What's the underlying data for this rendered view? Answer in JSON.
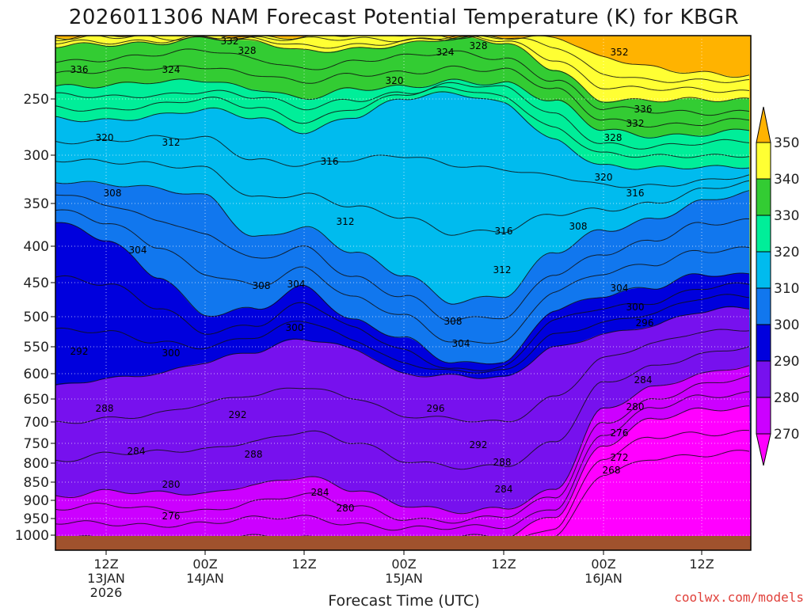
{
  "chart_data": {
    "type": "heatmap",
    "title": "2026011306 NAM Forecast Potential Temperature (K) for KBGR",
    "xlabel": "Forecast Time (UTC)",
    "ylabel": "",
    "y_scale": "pressure (inverted, hPa)",
    "ylim": [
      1000,
      200
    ],
    "y_ticks": [
      "250",
      "300",
      "350",
      "400",
      "450",
      "500",
      "550",
      "600",
      "650",
      "700",
      "750",
      "800",
      "850",
      "900",
      "950",
      "1000"
    ],
    "x_ticks": [
      {
        "lines": [
          "12Z",
          "13JAN",
          "2026"
        ]
      },
      {
        "lines": [
          "00Z",
          "14JAN"
        ]
      },
      {
        "lines": [
          "12Z"
        ]
      },
      {
        "lines": [
          "00Z",
          "15JAN"
        ]
      },
      {
        "lines": [
          "12Z"
        ]
      },
      {
        "lines": [
          "00Z",
          "16JAN"
        ]
      },
      {
        "lines": [
          "12Z"
        ]
      }
    ],
    "grid": true,
    "colorbar": {
      "labels": [
        "350",
        "340",
        "330",
        "320",
        "310",
        "300",
        "290",
        "280",
        "270"
      ],
      "colors": [
        "#ffb300",
        "#ffff33",
        "#33cc33",
        "#00ee99",
        "#00bbee",
        "#1177ee",
        "#0000dd",
        "#7711ee",
        "#cc00ff",
        "#ff00ff"
      ]
    },
    "contour_interval_K": 4,
    "contour_labels": [
      {
        "text": "332"
      },
      {
        "text": "328"
      },
      {
        "text": "324"
      },
      {
        "text": "328"
      },
      {
        "text": "352"
      },
      {
        "text": "336"
      },
      {
        "text": "324"
      },
      {
        "text": "320"
      },
      {
        "text": "336"
      },
      {
        "text": "332"
      },
      {
        "text": "328"
      },
      {
        "text": "320"
      },
      {
        "text": "312"
      },
      {
        "text": "316"
      },
      {
        "text": "320"
      },
      {
        "text": "316"
      },
      {
        "text": "308"
      },
      {
        "text": "312"
      },
      {
        "text": "316"
      },
      {
        "text": "308"
      },
      {
        "text": "304"
      },
      {
        "text": "312"
      },
      {
        "text": "308"
      },
      {
        "text": "304"
      },
      {
        "text": "304"
      },
      {
        "text": "300"
      },
      {
        "text": "300"
      },
      {
        "text": "296"
      },
      {
        "text": "308"
      },
      {
        "text": "304"
      },
      {
        "text": "292"
      },
      {
        "text": "300"
      },
      {
        "text": "284"
      },
      {
        "text": "288"
      },
      {
        "text": "292"
      },
      {
        "text": "296"
      },
      {
        "text": "280"
      },
      {
        "text": "292"
      },
      {
        "text": "276"
      },
      {
        "text": "284"
      },
      {
        "text": "288"
      },
      {
        "text": "288"
      },
      {
        "text": "272"
      },
      {
        "text": "268"
      },
      {
        "text": "280"
      },
      {
        "text": "284"
      },
      {
        "text": "284"
      },
      {
        "text": "280"
      },
      {
        "text": "276"
      }
    ],
    "ground_color": "#a0522d"
  },
  "footer": {
    "credit": "coolwx.com/models"
  }
}
